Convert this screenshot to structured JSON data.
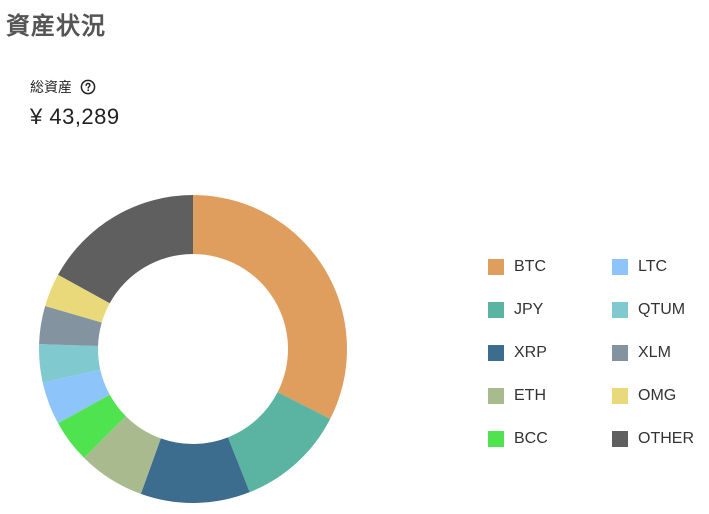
{
  "page": {
    "title": "資産状況"
  },
  "summary": {
    "label": "総資産",
    "help_icon": "question-circle-icon",
    "total": "¥ 43,289"
  },
  "chart_data": {
    "type": "pie",
    "donut": true,
    "categories": [
      "BTC",
      "JPY",
      "XRP",
      "ETH",
      "BCC",
      "LTC",
      "QTUM",
      "XLM",
      "OMG",
      "OTHER"
    ],
    "values": [
      32.5,
      11.5,
      11.5,
      7.0,
      4.5,
      4.5,
      4.0,
      4.0,
      3.5,
      17.0
    ],
    "colors": [
      "#E09E5E",
      "#5BB4A1",
      "#3C6D8E",
      "#A8BA8E",
      "#50E350",
      "#8DC4F9",
      "#80CACF",
      "#8393A0",
      "#EAD97B",
      "#5F5F5F"
    ],
    "legend_placement": "right",
    "legend_order": [
      "BTC",
      "LTC",
      "JPY",
      "QTUM",
      "XRP",
      "XLM",
      "ETH",
      "OMG",
      "BCC",
      "OTHER"
    ]
  }
}
